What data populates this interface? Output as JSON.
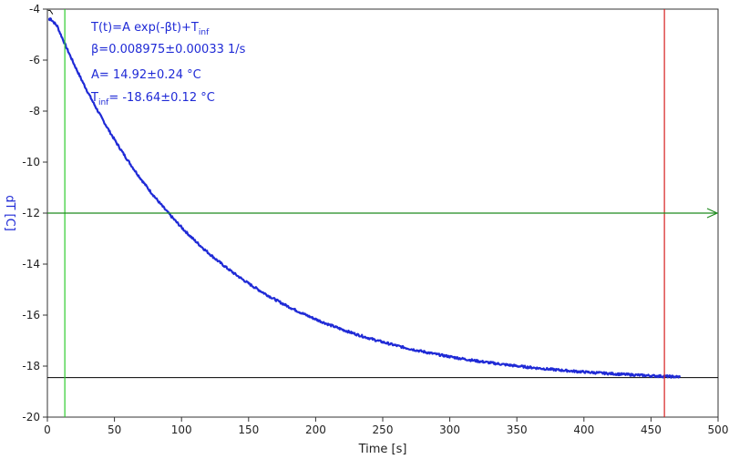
{
  "chart_data": {
    "type": "line",
    "title": "",
    "xlabel": "Time [s]",
    "ylabel": "dT [C]",
    "xlim": [
      0,
      500
    ],
    "ylim": [
      -20,
      -4
    ],
    "xticks": [
      0,
      50,
      100,
      150,
      200,
      250,
      300,
      350,
      400,
      450,
      500
    ],
    "yticks": [
      -20,
      -18,
      -16,
      -14,
      -12,
      -10,
      -8,
      -6,
      -4
    ],
    "grid": false,
    "fit": {
      "formula_main": "T(t)=A exp(-βt)+T",
      "formula_sub": "inf",
      "beta_text": "β=0.008975±0.00033 1/s",
      "a_text": "A= 14.92±0.24 °C",
      "tinf_prefix": "T",
      "tinf_sub": "inf",
      "tinf_rest": "= -18.64±0.12 °C",
      "beta": 0.008975,
      "A": 14.92,
      "T_inf": -18.64
    },
    "series": [
      {
        "role": "measured",
        "x_range": [
          2,
          472
        ],
        "values_at": {
          "x": [
            2,
            13,
            50,
            100,
            150,
            200,
            250,
            300,
            350,
            400,
            450,
            472
          ],
          "y": [
            -4.4,
            -5.3,
            -9.2,
            -12.5,
            -14.8,
            -16.2,
            -17.0,
            -17.7,
            -18.1,
            -18.3,
            -18.4,
            -18.45
          ]
        }
      }
    ],
    "baseline": {
      "x": [
        0,
        500
      ],
      "y": [
        -18.45,
        -18.45
      ],
      "color": "#000000"
    },
    "vertical_lines": [
      {
        "x": 13,
        "color": "#2ecc2e"
      },
      {
        "x": 460,
        "color": "#d62020"
      }
    ],
    "horizontal_line": {
      "y": -12,
      "color": "#1f8a1f"
    },
    "colors": {
      "series": "#1f2ad6",
      "axis": "#333333",
      "annotation": "#1f2ad6"
    }
  }
}
